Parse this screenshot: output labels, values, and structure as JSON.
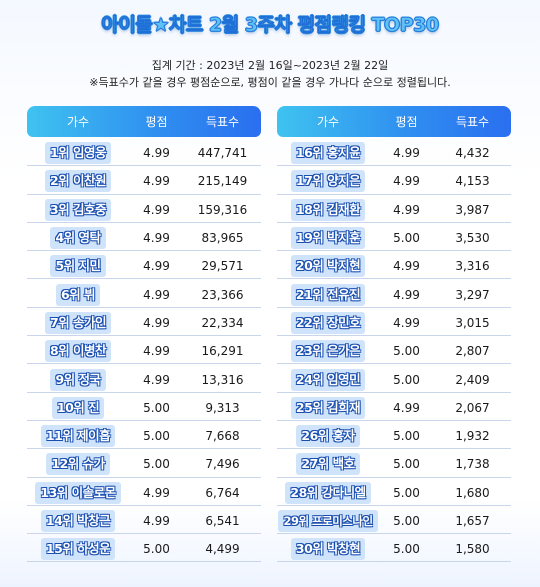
{
  "title": "아이돌★차트 2월 3주차 평점랭킹 TOP30",
  "period": "집계 기간 : 2023년 2월 16일~2023년 2월 22일",
  "note": "※득표수가 같을 경우 평점순으로, 평점이 같을 경우 가나다 순으로 정렬됩니다.",
  "headers": {
    "singer": "가수",
    "rating": "평점",
    "votes": "득표수"
  },
  "colors": {
    "header_start": "#3fc3f0",
    "header_end": "#2a6ff0",
    "name_bg": "#cfe3fb",
    "name_stroke": "#1a4fb0"
  },
  "chart_data": {
    "type": "table",
    "columns": [
      "가수",
      "평점",
      "득표수"
    ],
    "left_rows": [
      {
        "rank_name": "1위 임영웅",
        "rating": "4.99",
        "votes": "447,741"
      },
      {
        "rank_name": "2위 이찬원",
        "rating": "4.99",
        "votes": "215,149"
      },
      {
        "rank_name": "3위 김호중",
        "rating": "4.99",
        "votes": "159,316"
      },
      {
        "rank_name": "4위 영탁",
        "rating": "4.99",
        "votes": "83,965"
      },
      {
        "rank_name": "5위 지민",
        "rating": "4.99",
        "votes": "29,571"
      },
      {
        "rank_name": "6위 뷔",
        "rating": "4.99",
        "votes": "23,366"
      },
      {
        "rank_name": "7위 송가인",
        "rating": "4.99",
        "votes": "22,334"
      },
      {
        "rank_name": "8위 이병찬",
        "rating": "4.99",
        "votes": "16,291"
      },
      {
        "rank_name": "9위 정국",
        "rating": "4.99",
        "votes": "13,316"
      },
      {
        "rank_name": "10위 진",
        "rating": "5.00",
        "votes": "9,313"
      },
      {
        "rank_name": "11위 제이홉",
        "rating": "5.00",
        "votes": "7,668"
      },
      {
        "rank_name": "12위 슈가",
        "rating": "5.00",
        "votes": "7,496"
      },
      {
        "rank_name": "13위 이솔로몬",
        "rating": "4.99",
        "votes": "6,764"
      },
      {
        "rank_name": "14위 박창근",
        "rating": "4.99",
        "votes": "6,541"
      },
      {
        "rank_name": "15위 하성운",
        "rating": "5.00",
        "votes": "4,499"
      }
    ],
    "right_rows": [
      {
        "rank_name": "16위 홍지윤",
        "rating": "4.99",
        "votes": "4,432"
      },
      {
        "rank_name": "17위 양지은",
        "rating": "4.99",
        "votes": "4,153"
      },
      {
        "rank_name": "18위 김재환",
        "rating": "4.99",
        "votes": "3,987"
      },
      {
        "rank_name": "19위 박지훈",
        "rating": "5.00",
        "votes": "3,530"
      },
      {
        "rank_name": "20위 박지현",
        "rating": "4.99",
        "votes": "3,316"
      },
      {
        "rank_name": "21위 전유진",
        "rating": "4.99",
        "votes": "3,297"
      },
      {
        "rank_name": "22위 장민호",
        "rating": "4.99",
        "votes": "3,015"
      },
      {
        "rank_name": "23위 은가은",
        "rating": "5.00",
        "votes": "2,807"
      },
      {
        "rank_name": "24위 임영민",
        "rating": "5.00",
        "votes": "2,409"
      },
      {
        "rank_name": "25위 김희재",
        "rating": "4.99",
        "votes": "2,067"
      },
      {
        "rank_name": "26위 홍자",
        "rating": "5.00",
        "votes": "1,932"
      },
      {
        "rank_name": "27위 백호",
        "rating": "5.00",
        "votes": "1,738"
      },
      {
        "rank_name": "28위 강다니엘",
        "rating": "5.00",
        "votes": "1,680"
      },
      {
        "rank_name": "29위 프로미스나인",
        "rating": "5.00",
        "votes": "1,657"
      },
      {
        "rank_name": "30위 박창현",
        "rating": "5.00",
        "votes": "1,580"
      }
    ]
  }
}
